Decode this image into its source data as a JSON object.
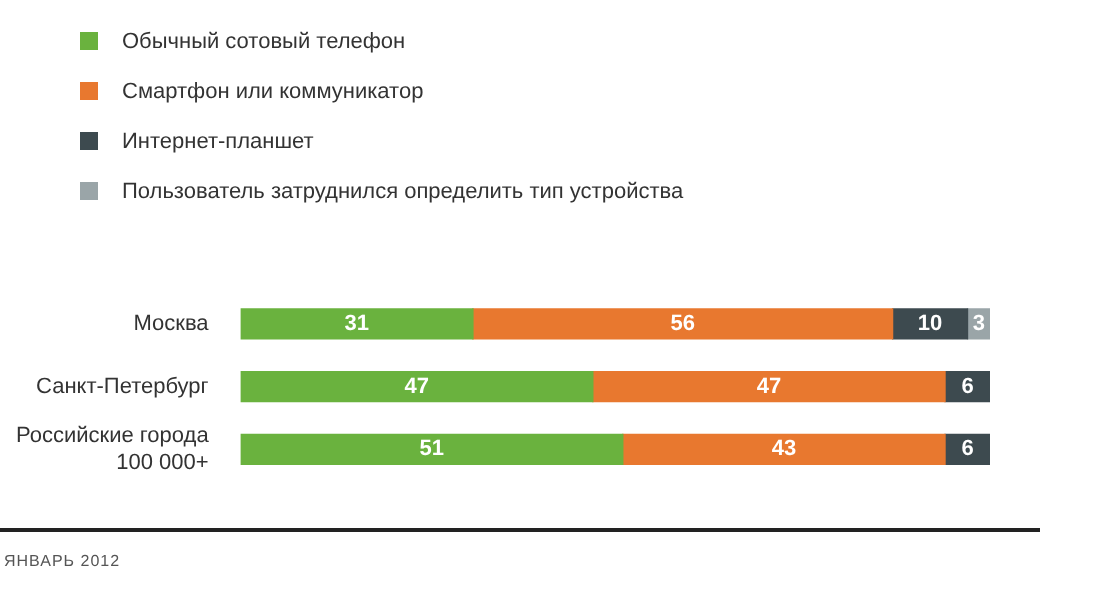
{
  "chart_data": {
    "type": "bar",
    "orientation": "horizontal",
    "stacked": true,
    "data_labels": true,
    "legend": "top left",
    "categories": [
      "Москва",
      "Санкт-Петербург",
      "Российские города 100 000+"
    ],
    "series": [
      {
        "name": "Обычный сотовый телефон",
        "color": "#6ab23e",
        "values": [
          31,
          47,
          51
        ]
      },
      {
        "name": "Смартфон или коммуникатор",
        "color": "#e8782f",
        "values": [
          56,
          47,
          43
        ]
      },
      {
        "name": "Интернет-планшет",
        "color": "#3d4a4f",
        "values": [
          10,
          6,
          6
        ]
      },
      {
        "name": "Пользователь затруднился определить тип устройства",
        "color": "#9aa5a8",
        "values": [
          3,
          null,
          null
        ]
      }
    ],
    "annotations": [
      "ЯНВАРЬ 2012"
    ]
  }
}
